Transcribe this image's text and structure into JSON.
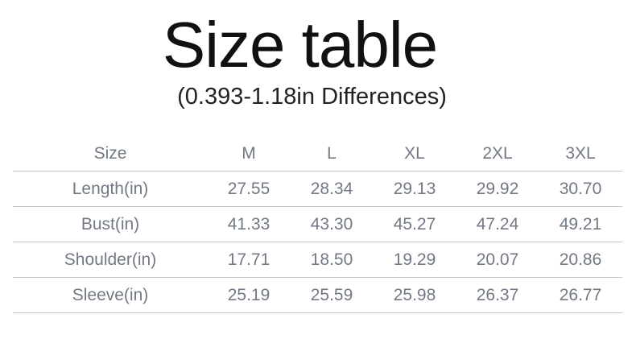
{
  "title": "Size table",
  "subtitle": "(0.393-1.18in Differences)",
  "table": {
    "headers": [
      "Size",
      "M",
      "L",
      "XL",
      "2XL",
      "3XL"
    ],
    "rows": [
      {
        "label": "Length(in)",
        "values": [
          "27.55",
          "28.34",
          "29.13",
          "29.92",
          "30.70"
        ]
      },
      {
        "label": "Bust(in)",
        "values": [
          "41.33",
          "43.30",
          "45.27",
          "47.24",
          "49.21"
        ]
      },
      {
        "label": "Shoulder(in)",
        "values": [
          "17.71",
          "18.50",
          "19.29",
          "20.07",
          "20.86"
        ]
      },
      {
        "label": "Sleeve(in)",
        "values": [
          "25.19",
          "25.59",
          "25.98",
          "26.37",
          "26.77"
        ]
      }
    ]
  }
}
